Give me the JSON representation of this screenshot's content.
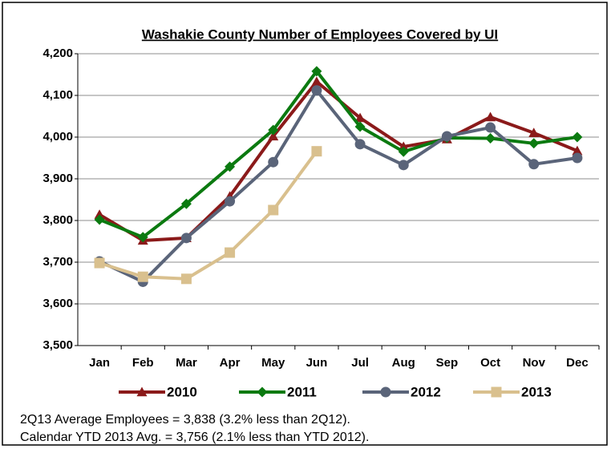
{
  "chart_data": {
    "type": "line",
    "title": "Washakie County Number of Employees Covered by UI",
    "categories": [
      "Jan",
      "Feb",
      "Mar",
      "Apr",
      "May",
      "Jun",
      "Jul",
      "Aug",
      "Sep",
      "Oct",
      "Nov",
      "Dec"
    ],
    "series": [
      {
        "name": "2010",
        "color": "#8b1a1a",
        "marker": "triangle",
        "values": [
          3814,
          3752,
          3758,
          3858,
          4002,
          4133,
          4046,
          3977,
          3995,
          4048,
          4010,
          3967
        ]
      },
      {
        "name": "2011",
        "color": "#0b7a10",
        "marker": "diamond",
        "values": [
          3802,
          3760,
          3840,
          3929,
          4017,
          4158,
          4025,
          3965,
          3998,
          3997,
          3985,
          4000
        ]
      },
      {
        "name": "2012",
        "color": "#5a6479",
        "marker": "circle",
        "values": [
          3702,
          3653,
          3758,
          3846,
          3940,
          4112,
          3983,
          3933,
          4002,
          4023,
          3935,
          3950
        ]
      },
      {
        "name": "2013",
        "color": "#d9c08e",
        "marker": "square",
        "values": [
          3698,
          3665,
          3660,
          3723,
          3825,
          3966,
          null,
          null,
          null,
          null,
          null,
          null
        ]
      }
    ],
    "ylim": [
      3500,
      4200
    ],
    "yticks": [
      {
        "value": 3500,
        "label": "3,500"
      },
      {
        "value": 3600,
        "label": "3,600"
      },
      {
        "value": 3700,
        "label": "3,700"
      },
      {
        "value": 3800,
        "label": "3,800"
      },
      {
        "value": 3900,
        "label": "3,900"
      },
      {
        "value": 4000,
        "label": "4,000"
      },
      {
        "value": 4100,
        "label": "4,100"
      },
      {
        "value": 4200,
        "label": "4,200"
      }
    ],
    "grid": true,
    "legend": "bottom",
    "notes": [
      "2Q13 Average Employees = 3,838 (3.2% less than 2Q12).",
      "Calendar YTD 2013 Avg. = 3,756 (2.1% less than YTD 2012)."
    ]
  }
}
